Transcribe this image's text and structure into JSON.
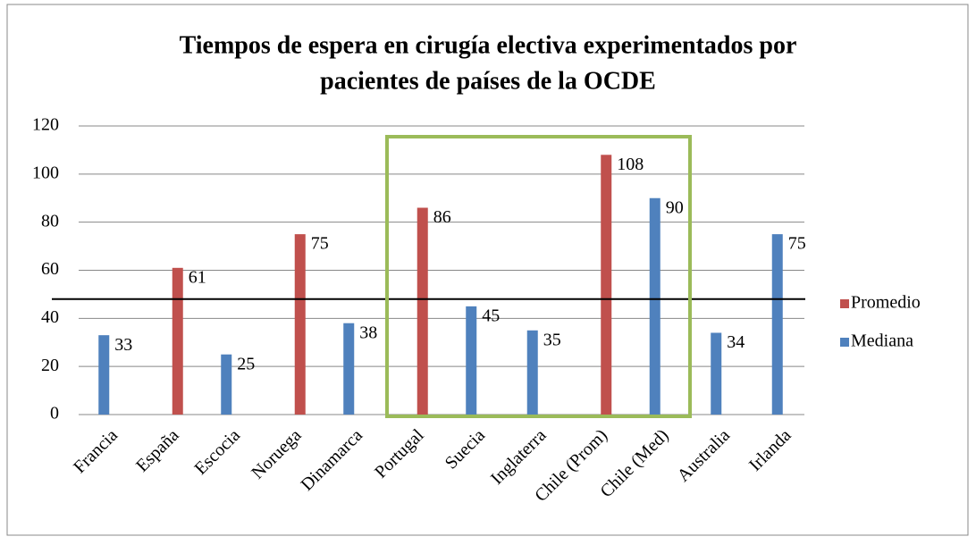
{
  "chart_data": {
    "type": "bar",
    "title": [
      "Tiempos de espera en cirugía electiva experimentados por",
      "pacientes de países de la OCDE"
    ],
    "categories": [
      "Francia",
      "España",
      "Escocia",
      "Noruega",
      "Dinamarca",
      "Portugal",
      "Suecia",
      "Inglaterra",
      "Chile (Prom)",
      "Chile (Med)",
      "Australia",
      "Irlanda"
    ],
    "series": [
      {
        "name": "Promedio",
        "color": "#c0504d",
        "values": [
          null,
          61,
          null,
          75,
          null,
          86,
          null,
          null,
          108,
          null,
          null,
          null
        ]
      },
      {
        "name": "Mediana",
        "color": "#4f81bd",
        "values": [
          33,
          null,
          25,
          null,
          38,
          null,
          45,
          35,
          null,
          90,
          34,
          75
        ]
      }
    ],
    "ylim": [
      0,
      120
    ],
    "yticks": [
      0,
      20,
      40,
      60,
      80,
      100,
      120
    ],
    "grid": true,
    "reference_line": 48,
    "legend": "right"
  }
}
